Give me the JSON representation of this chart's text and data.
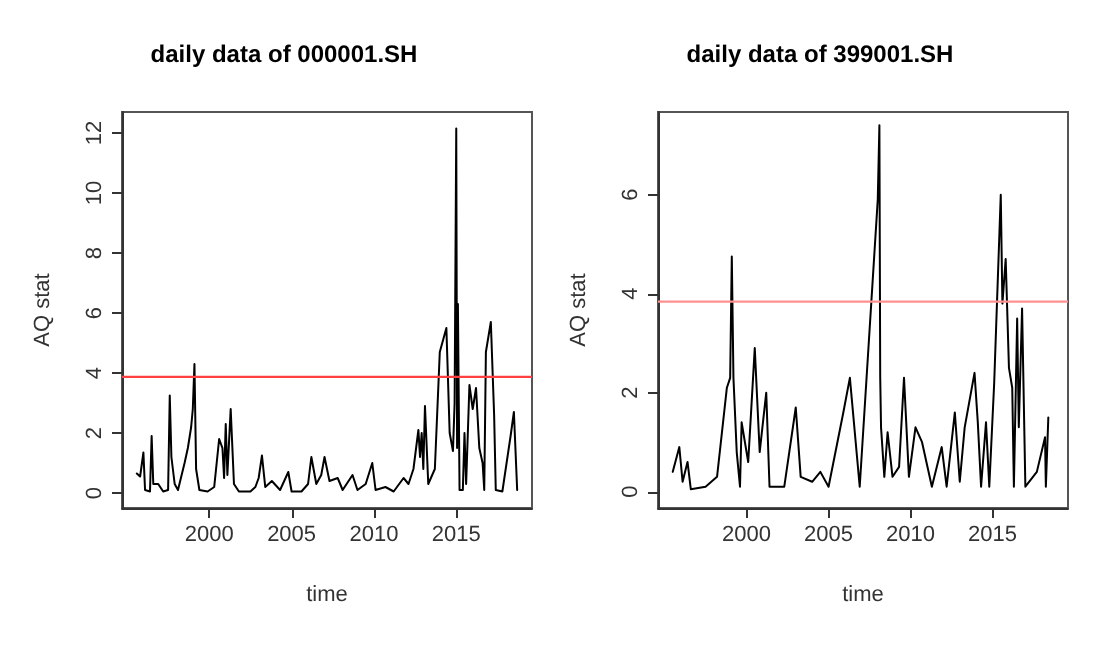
{
  "chart_data": [
    {
      "type": "line",
      "title": "daily data of 000001.SH",
      "xlabel": "time",
      "ylabel": "AQ stat",
      "xlim": [
        1994.7,
        2019.6
      ],
      "xticks": [
        2000,
        2005,
        2010,
        2015
      ],
      "ylim": [
        -0.5,
        12.7
      ],
      "yticks": [
        0,
        2,
        4,
        6,
        8,
        10,
        12
      ],
      "grid": false,
      "marker": "none",
      "series": [
        {
          "color": "#000000",
          "x": [
            1995.6,
            1995.8,
            1996.0,
            1996.1,
            1996.4,
            1996.5,
            1996.6,
            1996.9,
            1997.2,
            1997.5,
            1997.6,
            1997.7,
            1997.9,
            1998.1,
            1998.5,
            1998.7,
            1998.9,
            1999.0,
            1999.1,
            1999.2,
            1999.4,
            1999.9,
            2000.3,
            2000.6,
            2000.8,
            2000.9,
            2001.0,
            2001.1,
            2001.3,
            2001.5,
            2001.8,
            2002.5,
            2002.8,
            2003.0,
            2003.2,
            2003.4,
            2003.8,
            2004.3,
            2004.8,
            2005.0,
            2005.6,
            2006.0,
            2006.2,
            2006.5,
            2006.8,
            2007.0,
            2007.3,
            2007.8,
            2008.1,
            2008.7,
            2009.0,
            2009.5,
            2009.9,
            2010.1,
            2010.7,
            2011.2,
            2011.8,
            2012.1,
            2012.4,
            2012.7,
            2012.8,
            2012.9,
            2013.0,
            2013.1,
            2013.3,
            2013.7,
            2014.0,
            2014.4,
            2014.6,
            2014.8,
            2014.9,
            2015.0,
            2015.05,
            2015.1,
            2015.2,
            2015.4,
            2015.5,
            2015.6,
            2015.8,
            2016.0,
            2016.2,
            2016.4,
            2016.6,
            2016.7,
            2016.8,
            2017.1,
            2017.3,
            2017.4,
            2017.8,
            2018.3,
            2018.5,
            2018.7
          ],
          "values": [
            0.65,
            0.55,
            1.35,
            0.1,
            0.05,
            1.9,
            0.3,
            0.3,
            0.05,
            0.1,
            3.25,
            1.2,
            0.3,
            0.1,
            1.0,
            1.5,
            2.2,
            2.8,
            4.3,
            0.8,
            0.1,
            0.05,
            0.2,
            1.8,
            1.5,
            0.5,
            2.3,
            0.6,
            2.8,
            0.3,
            0.05,
            0.05,
            0.2,
            0.5,
            1.25,
            0.2,
            0.4,
            0.1,
            0.7,
            0.05,
            0.05,
            0.3,
            1.2,
            0.3,
            0.6,
            1.2,
            0.4,
            0.5,
            0.1,
            0.6,
            0.1,
            0.3,
            1.0,
            0.1,
            0.2,
            0.05,
            0.5,
            0.3,
            0.8,
            2.1,
            1.2,
            2.0,
            0.8,
            2.9,
            0.3,
            0.8,
            4.7,
            5.5,
            2.0,
            1.4,
            3.0,
            12.15,
            1.5,
            6.3,
            0.1,
            0.1,
            2.0,
            0.3,
            3.6,
            2.8,
            3.5,
            1.5,
            1.0,
            0.1,
            4.7,
            5.7,
            2.6,
            0.1,
            0.05,
            1.9,
            2.7,
            0.1
          ]
        }
      ],
      "ref_lines": [
        {
          "axis": "y",
          "value": 3.87,
          "color": "#ff4040"
        }
      ]
    },
    {
      "type": "line",
      "title": "daily data of 399001.SH",
      "xlabel": "time",
      "ylabel": "AQ stat",
      "xlim": [
        1994.6,
        2019.6
      ],
      "xticks": [
        2000,
        2005,
        2010,
        2015
      ],
      "ylim": [
        -0.33,
        7.67
      ],
      "yticks": [
        0,
        2,
        4,
        6
      ],
      "grid": false,
      "marker": "none",
      "series": [
        {
          "color": "#000000",
          "x": [
            1995.5,
            1995.9,
            1996.1,
            1996.4,
            1996.6,
            1997.5,
            1998.2,
            1998.8,
            1999.0,
            1999.1,
            1999.2,
            1999.4,
            1999.6,
            1999.7,
            2000.1,
            2000.5,
            2000.8,
            2001.2,
            2001.4,
            2002.3,
            2003.0,
            2003.3,
            2004.0,
            2004.5,
            2005.0,
            2005.9,
            2006.3,
            2006.9,
            2008.0,
            2008.1,
            2008.15,
            2008.2,
            2008.4,
            2008.6,
            2008.9,
            2009.3,
            2009.6,
            2009.9,
            2010.3,
            2010.7,
            2011.3,
            2011.9,
            2012.2,
            2012.7,
            2013.0,
            2013.3,
            2013.9,
            2014.1,
            2014.3,
            2014.6,
            2014.8,
            2015.1,
            2015.5,
            2015.6,
            2015.8,
            2016.0,
            2016.2,
            2016.3,
            2016.5,
            2016.6,
            2016.8,
            2017.0,
            2017.7,
            2018.2,
            2018.25,
            2018.4
          ],
          "values": [
            0.4,
            0.9,
            0.2,
            0.6,
            0.05,
            0.1,
            0.3,
            2.1,
            2.3,
            4.75,
            2.3,
            0.8,
            0.1,
            1.4,
            0.6,
            2.9,
            0.8,
            2.0,
            0.1,
            0.1,
            1.7,
            0.3,
            0.2,
            0.4,
            0.1,
            1.6,
            2.3,
            0.1,
            5.9,
            7.4,
            2.3,
            1.3,
            0.3,
            1.2,
            0.3,
            0.5,
            2.3,
            0.3,
            1.3,
            1.0,
            0.1,
            0.9,
            0.1,
            1.6,
            0.2,
            1.3,
            2.4,
            1.4,
            0.1,
            1.4,
            0.1,
            2.2,
            6.0,
            3.8,
            4.7,
            2.5,
            2.1,
            0.1,
            3.5,
            1.3,
            3.7,
            0.1,
            0.4,
            1.1,
            0.1,
            1.5
          ]
        }
      ],
      "ref_lines": [
        {
          "axis": "y",
          "value": 3.84,
          "color": "#ff9090"
        }
      ]
    }
  ]
}
